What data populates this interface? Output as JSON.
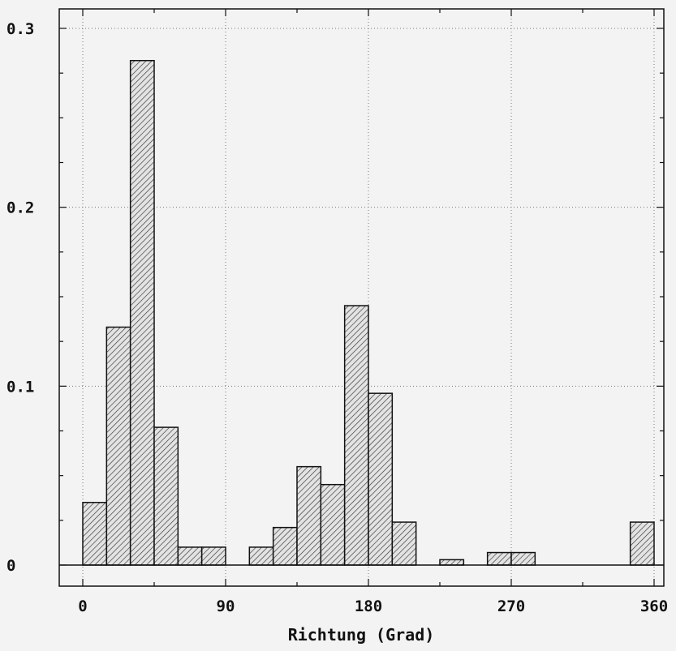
{
  "chart_data": {
    "type": "bar",
    "title": "",
    "xlabel": "Richtung (Grad)",
    "ylabel": "",
    "bin_width": 15,
    "bins_start": [
      0,
      15,
      30,
      45,
      60,
      75,
      90,
      105,
      120,
      135,
      150,
      165,
      180,
      195,
      210,
      225,
      240,
      255,
      270,
      285,
      300,
      315,
      330,
      345
    ],
    "values": [
      0.035,
      0.133,
      0.282,
      0.077,
      0.01,
      0.01,
      0,
      0.01,
      0.021,
      0.055,
      0.045,
      0.145,
      0.096,
      0.024,
      0,
      0.003,
      0,
      0.007,
      0.007,
      0,
      0,
      0,
      0,
      0.024
    ],
    "xlim": [
      -15,
      360
    ],
    "ylim": [
      -0.012,
      0.3
    ],
    "xticks": [
      0,
      90,
      180,
      270,
      360
    ],
    "xtick_labels": [
      "0",
      "90",
      "180",
      "270",
      "360"
    ],
    "yticks": [
      0,
      0.1,
      0.2,
      0.3
    ],
    "ytick_labels": [
      "0",
      "0.1",
      "0.2",
      "0.3"
    ],
    "grid": true,
    "fill": "hatched",
    "colors": {
      "bar_fill": "#e3e3e3",
      "bar_stroke": "#111111",
      "hatch": "#333333",
      "grid": "#777777"
    }
  }
}
